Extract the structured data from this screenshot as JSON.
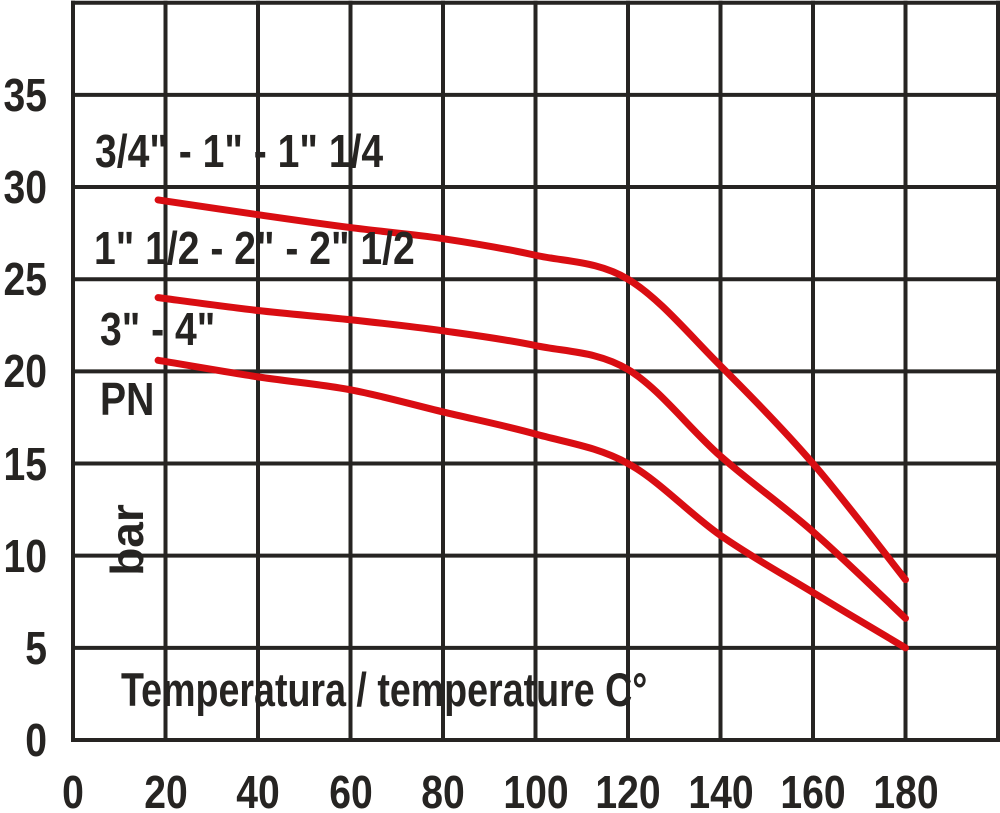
{
  "chart_data": {
    "type": "line",
    "title": "",
    "xlabel": "Temperatura / temperature C°",
    "ylabel_quantity": "PN",
    "ylabel_unit": "bar",
    "x_ticks": [
      "0",
      "20",
      "40",
      "60",
      "80",
      "100",
      "120",
      "140",
      "160",
      "180"
    ],
    "y_ticks": [
      "0",
      "5",
      "10",
      "15",
      "20",
      "25",
      "30",
      "35"
    ],
    "xlim": [
      0,
      200
    ],
    "ylim": [
      0,
      40
    ],
    "x_grid_step": 20,
    "y_grid_step": 5,
    "grid": "on",
    "legend_position": "inline-left-above-each-curve",
    "series": [
      {
        "name": "3/4\" - 1\" - 1\" 1/4",
        "color": "#d90d12",
        "points": [
          [
            18.4,
            29.3
          ],
          [
            40,
            28.5
          ],
          [
            60,
            27.8
          ],
          [
            80,
            27.2
          ],
          [
            100,
            26.3
          ],
          [
            120,
            25.0
          ],
          [
            140,
            20.3
          ],
          [
            160,
            15.0
          ],
          [
            180,
            8.7
          ]
        ]
      },
      {
        "name": "1\" 1/2 - 2\" - 2\" 1/2",
        "color": "#d90d12",
        "points": [
          [
            18.4,
            24.0
          ],
          [
            40,
            23.3
          ],
          [
            60,
            22.8
          ],
          [
            80,
            22.2
          ],
          [
            100,
            21.4
          ],
          [
            120,
            20.1
          ],
          [
            140,
            15.4
          ],
          [
            160,
            11.3
          ],
          [
            180,
            6.6
          ]
        ]
      },
      {
        "name": "3\" - 4\"",
        "color": "#d90d12",
        "points": [
          [
            18.4,
            20.6
          ],
          [
            40,
            19.7
          ],
          [
            60,
            19.0
          ],
          [
            80,
            17.8
          ],
          [
            100,
            16.6
          ],
          [
            120,
            15.0
          ],
          [
            140,
            11.1
          ],
          [
            160,
            8.0
          ],
          [
            180,
            5.0
          ]
        ]
      }
    ],
    "colors": {
      "background": "#ffffff",
      "grid": "#262422",
      "text": "#262422",
      "curves": "#d90d12"
    }
  }
}
